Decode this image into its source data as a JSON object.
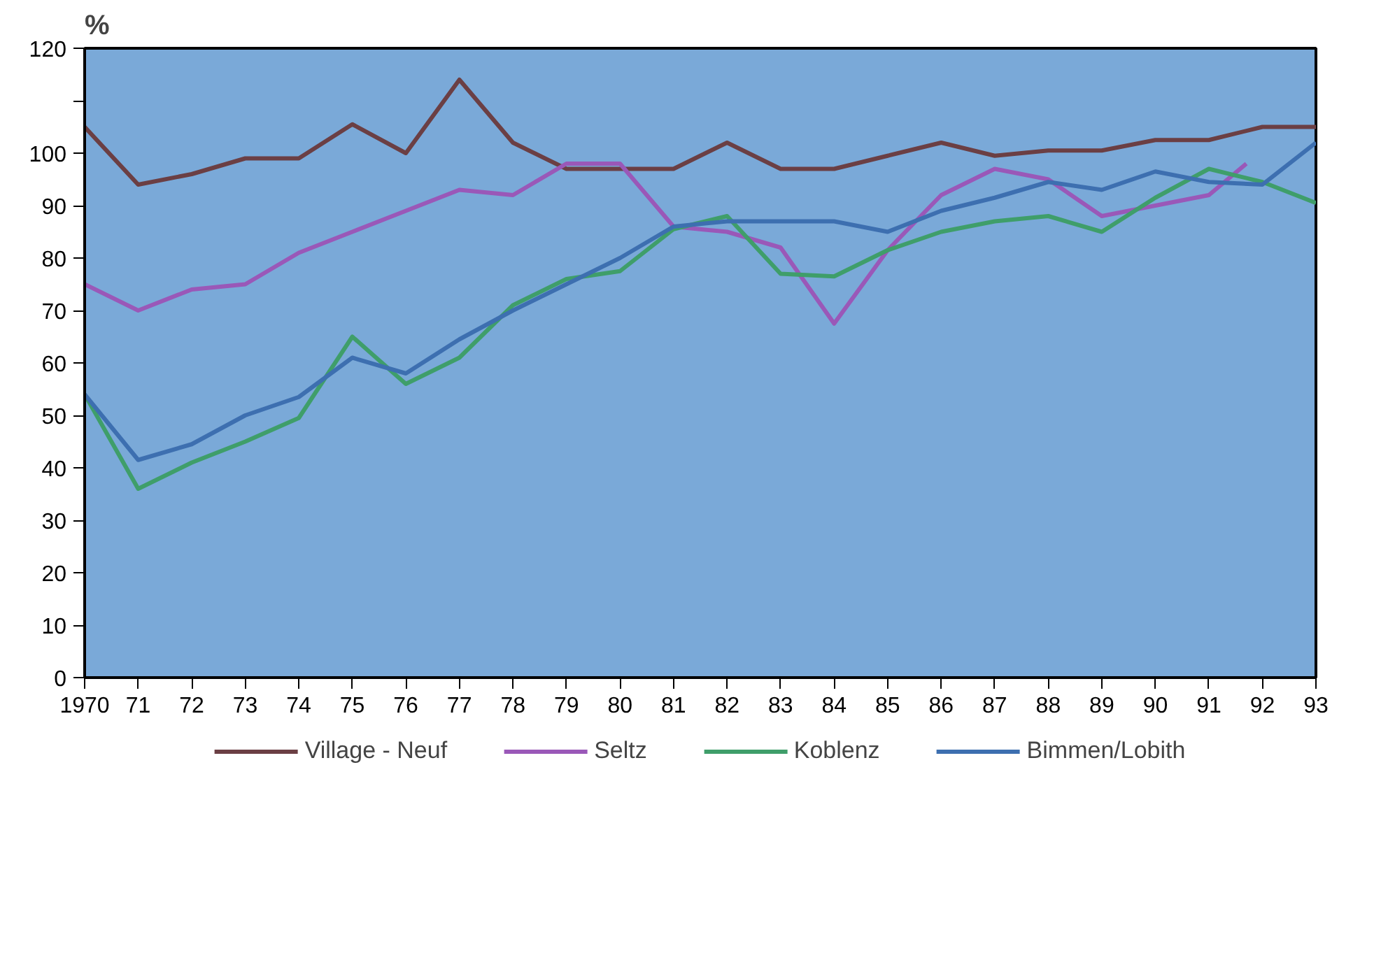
{
  "chart_data": {
    "type": "line",
    "ylabel": "%",
    "x": [
      1970,
      1971,
      1972,
      1973,
      1974,
      1975,
      1976,
      1977,
      1978,
      1979,
      1980,
      1981,
      1982,
      1983,
      1984,
      1985,
      1986,
      1987,
      1988,
      1989,
      1990,
      1991,
      1992,
      1993
    ],
    "xlim": [
      1970,
      1993
    ],
    "xticks": [
      {
        "value": 1970,
        "label": "1970"
      },
      {
        "value": 1971,
        "label": "71"
      },
      {
        "value": 1972,
        "label": "72"
      },
      {
        "value": 1973,
        "label": "73"
      },
      {
        "value": 1974,
        "label": "74"
      },
      {
        "value": 1975,
        "label": "75"
      },
      {
        "value": 1976,
        "label": "76"
      },
      {
        "value": 1977,
        "label": "77"
      },
      {
        "value": 1978,
        "label": "78"
      },
      {
        "value": 1979,
        "label": "79"
      },
      {
        "value": 1980,
        "label": "80"
      },
      {
        "value": 1981,
        "label": "81"
      },
      {
        "value": 1982,
        "label": "82"
      },
      {
        "value": 1983,
        "label": "83"
      },
      {
        "value": 1984,
        "label": "84"
      },
      {
        "value": 1985,
        "label": "85"
      },
      {
        "value": 1986,
        "label": "86"
      },
      {
        "value": 1987,
        "label": "87"
      },
      {
        "value": 1988,
        "label": "88"
      },
      {
        "value": 1989,
        "label": "89"
      },
      {
        "value": 1990,
        "label": "90"
      },
      {
        "value": 1991,
        "label": "91"
      },
      {
        "value": 1992,
        "label": "92"
      },
      {
        "value": 1993,
        "label": "93"
      }
    ],
    "ylim": [
      0,
      120
    ],
    "yticks": [
      0,
      10,
      20,
      30,
      40,
      50,
      60,
      70,
      80,
      90,
      100,
      {
        "value": 110,
        "label": null
      },
      120
    ],
    "grid": false,
    "legend": "bottom",
    "marker": "none",
    "line_style": "solid",
    "series": [
      {
        "name": "Village - Neuf",
        "color": "#6b3f44",
        "values": [
          105,
          94,
          96,
          99,
          99,
          105.5,
          100,
          114,
          102,
          97,
          97,
          97,
          102,
          97,
          97,
          99.5,
          102,
          99.5,
          100.5,
          100.5,
          102.5,
          102.5,
          105,
          105
        ]
      },
      {
        "name": "Seltz",
        "color": "#9a58b8",
        "x": [
          1970,
          1971,
          1972,
          1973,
          1974,
          1975,
          1976,
          1977,
          1978,
          1979,
          1980,
          1981,
          1982,
          1983,
          1984,
          1985,
          1986,
          1987,
          1988,
          1989,
          1990,
          1991,
          1991.7
        ],
        "values": [
          75,
          70,
          74,
          75,
          81,
          85,
          89,
          93,
          92,
          98,
          98,
          86,
          85,
          82,
          67.5,
          81.5,
          92,
          97,
          95,
          88,
          90,
          92,
          98
        ]
      },
      {
        "name": "Koblenz",
        "color": "#3f9e6a",
        "values": [
          54,
          36,
          41,
          45,
          49.5,
          65,
          56,
          61,
          71,
          76,
          77.5,
          85.5,
          88,
          77,
          76.5,
          81.5,
          85,
          87,
          88,
          85,
          91.5,
          97,
          94.5,
          90.5
        ]
      },
      {
        "name": "Bimmen/Lobith",
        "color": "#3d6fb0",
        "values": [
          54,
          41.5,
          44.5,
          50,
          53.5,
          61,
          58,
          64.5,
          70,
          75,
          80,
          86,
          87,
          87,
          87,
          85,
          89,
          91.5,
          94.5,
          93,
          96.5,
          94.5,
          94,
          102
        ]
      }
    ]
  }
}
